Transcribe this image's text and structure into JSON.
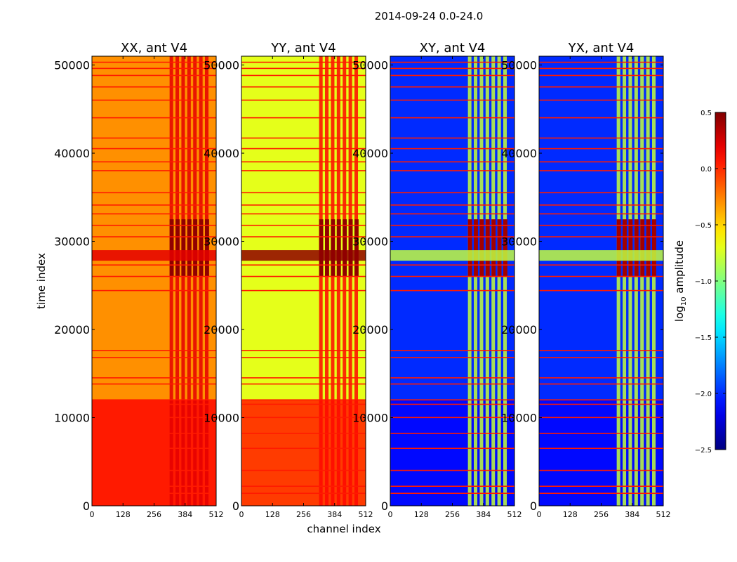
{
  "chart_data": {
    "type": "heatmap",
    "title": "2014-09-24 0.0-24.0",
    "xlabel": "channel index",
    "ylabel": "time index",
    "xlim": [
      0,
      512
    ],
    "ylim": [
      0,
      51000
    ],
    "x_ticks": [
      0,
      128,
      256,
      384,
      512
    ],
    "y_ticks": [
      0,
      10000,
      20000,
      30000,
      40000,
      50000
    ],
    "colorbar": {
      "label": "log10 amplitude",
      "label_main": "log",
      "label_sub": "10",
      "label_tail": " amplitude",
      "range": [
        -2.5,
        0.5
      ],
      "ticks": [
        "0.5",
        "0.0",
        "−0.5",
        "−1.0",
        "−1.5",
        "−2.0",
        "−2.5"
      ],
      "colormap": "jet"
    },
    "panels": [
      {
        "title": "XX, ant V4",
        "base_level": -0.3,
        "hot_level": 0.2,
        "low_band_level": 0.05,
        "rfi_band_level": 0.45
      },
      {
        "title": "YY, ant V4",
        "base_level": -0.7,
        "hot_level": 0.1,
        "low_band_level": -0.05,
        "rfi_band_level": 0.45
      },
      {
        "title": "XY, ant V4",
        "base_level": -2.0,
        "hot_level": -0.8,
        "low_band_level": -2.1,
        "rfi_band_level": 0.4
      },
      {
        "title": "YX, ant V4",
        "base_level": -2.0,
        "hot_level": -0.8,
        "low_band_level": -2.1,
        "rfi_band_level": 0.4
      }
    ],
    "features": {
      "hot_channel_range": [
        320,
        490
      ],
      "rfi_time_range": [
        26000,
        32500
      ],
      "strong_band_time_range": [
        27800,
        29000
      ],
      "low_time_region": [
        0,
        12000
      ],
      "flag_rows_time": [
        1400,
        2200,
        4000,
        6500,
        8200,
        10000,
        11500,
        12000,
        13800,
        14500,
        16800,
        17600,
        24400,
        26000,
        27300,
        30500,
        31800,
        33100,
        34100,
        35500,
        38000,
        39000,
        40500,
        41700,
        44000,
        46000,
        47500,
        48800,
        49600,
        50300
      ]
    }
  }
}
